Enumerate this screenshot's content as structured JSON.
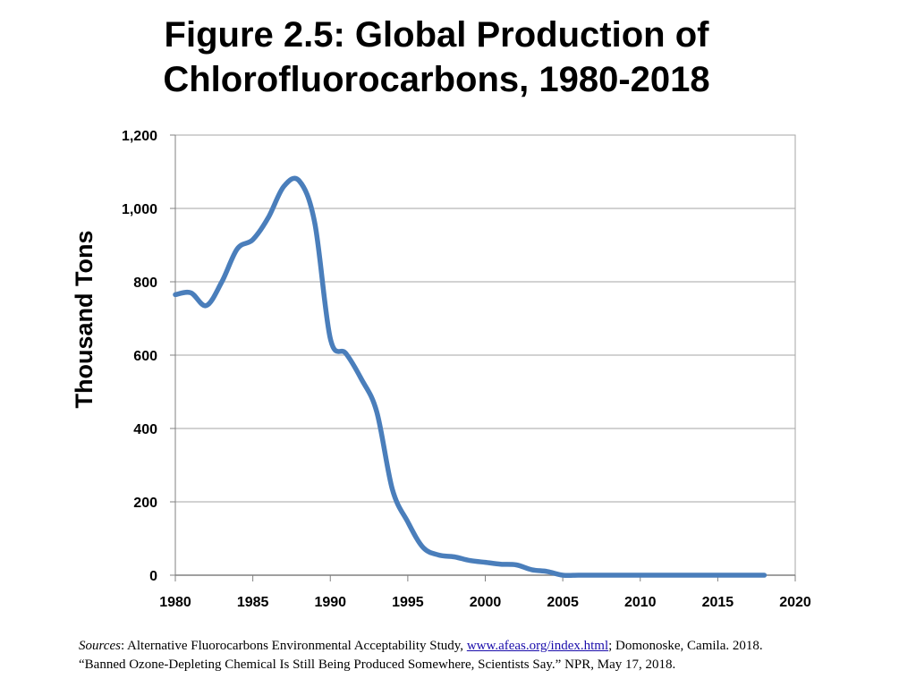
{
  "title_line1": "Figure 2.5: Global Production of",
  "title_line2": "Chlorofluorocarbons, 1980-2018",
  "sources": {
    "label": "Sources",
    "part1": ": Alternative Fluorocarbons Environmental Acceptability Study, ",
    "link": "www.afeas.org/index.html",
    "part2": "; Domonoske, Camila. 2018.",
    "part3": "“Banned Ozone-Depleting Chemical Is Still Being Produced Somewhere, Scientists Say.” NPR, May 17, 2018."
  },
  "chart_data": {
    "type": "line",
    "title": "Figure 2.5: Global Production of Chlorofluorocarbons, 1980-2018",
    "xlabel": "",
    "ylabel": "Thousand Tons",
    "xlim": [
      1980,
      2020
    ],
    "ylim": [
      0,
      1200
    ],
    "x_ticks": [
      1980,
      1985,
      1990,
      1995,
      2000,
      2005,
      2010,
      2015,
      2020
    ],
    "y_ticks": [
      0,
      200,
      400,
      600,
      800,
      1000,
      1200
    ],
    "y_tick_labels": [
      "0",
      "200",
      "400",
      "600",
      "800",
      "1,000",
      "1,200"
    ],
    "grid": "horizontal",
    "line_color": "#4a7ebb",
    "series": [
      {
        "x": [
          1980,
          1981,
          1982,
          1983,
          1984,
          1985,
          1986,
          1987,
          1988,
          1989,
          1990,
          1991,
          1992,
          1993,
          1994,
          1995,
          1996,
          1997,
          1998,
          1999,
          2000,
          2001,
          2002,
          2003,
          2004,
          2005,
          2006,
          2007,
          2008,
          2009,
          2010,
          2011,
          2012,
          2013,
          2014,
          2015,
          2016,
          2017,
          2018
        ],
        "values": [
          765,
          770,
          735,
          800,
          890,
          915,
          975,
          1060,
          1075,
          960,
          645,
          605,
          535,
          445,
          235,
          145,
          75,
          55,
          50,
          40,
          35,
          30,
          28,
          15,
          10,
          0,
          0,
          0,
          0,
          0,
          0,
          0,
          0,
          0,
          0,
          0,
          0,
          0,
          0
        ]
      }
    ]
  }
}
